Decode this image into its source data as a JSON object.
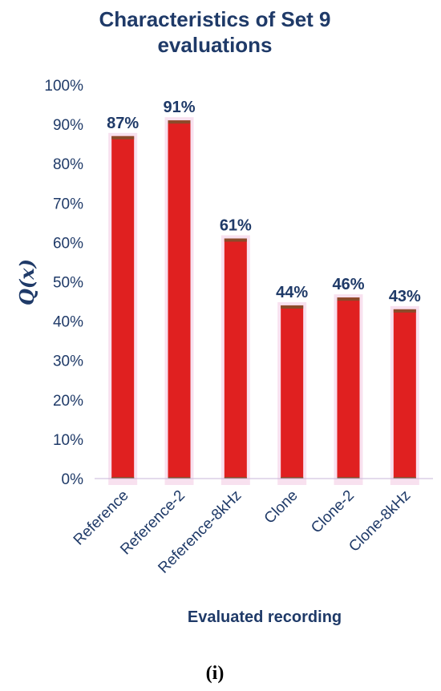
{
  "chart_data": {
    "type": "bar",
    "title_lines": [
      "Characteristics of Set 9",
      "evaluations"
    ],
    "ylabel": "Q(x)",
    "xlabel": "Evaluated recording",
    "categories": [
      "Reference",
      "Reference-2",
      "Reference-8kHz",
      "Clone",
      "Clone-2",
      "Clone-8kHz"
    ],
    "values": [
      87,
      91,
      61,
      44,
      46,
      43
    ],
    "data_labels": [
      "87%",
      "91%",
      "61%",
      "44%",
      "46%",
      "43%"
    ],
    "ylim": [
      0,
      100
    ],
    "yticks": [
      0,
      10,
      20,
      30,
      40,
      50,
      60,
      70,
      80,
      90,
      100
    ],
    "ytick_labels": [
      "0%",
      "10%",
      "20%",
      "30%",
      "40%",
      "50%",
      "60%",
      "70%",
      "80%",
      "90%",
      "100%"
    ],
    "grid": false,
    "legend": "none",
    "bar_color": "#e02020",
    "bar_edge_color": "#8b4a2a",
    "text_color": "#1f3a68"
  },
  "panel_label": "(i)"
}
